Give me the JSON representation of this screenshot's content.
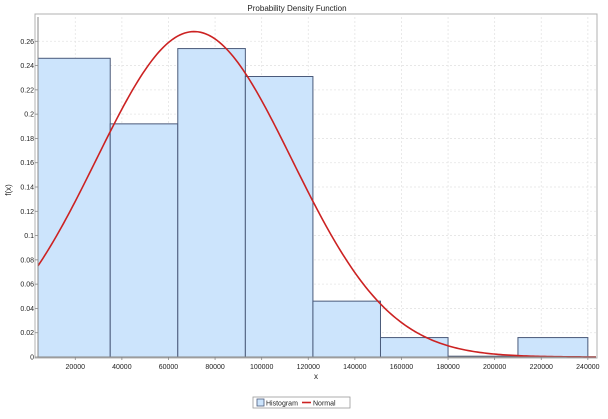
{
  "chart_data": {
    "type": "bar",
    "title": "Probability Density Function",
    "xlabel": "x",
    "ylabel": "f(x)",
    "xlim": [
      4000,
      243500
    ],
    "ylim": [
      0,
      0.28
    ],
    "grid": true,
    "legend_position": "bottom",
    "x_ticks": [
      20000,
      40000,
      60000,
      80000,
      100000,
      120000,
      140000,
      160000,
      180000,
      200000,
      220000,
      240000
    ],
    "x_tick_labels": [
      "20000",
      "40000",
      "60000",
      "80000",
      "100000",
      "120000",
      "140000",
      "160000",
      "180000",
      "200000",
      "220000",
      "240000"
    ],
    "y_ticks": [
      0,
      0.02,
      0.04,
      0.06,
      0.08,
      0.1,
      0.12,
      0.14,
      0.16,
      0.18,
      0.2,
      0.22,
      0.24,
      0.26
    ],
    "y_tick_labels": [
      "0",
      "0.02",
      "0.04",
      "0.06",
      "0.08",
      "0.1",
      "0.12",
      "0.14",
      "0.16",
      "0.18",
      "0.2",
      "0.22",
      "0.24",
      "0.26"
    ],
    "histogram": {
      "name": "Histogram",
      "color": "#cce4fc",
      "edge_color": "#4a5a7a",
      "bins": [
        {
          "x0": 4000,
          "x1": 35000,
          "value": 0.246
        },
        {
          "x0": 35000,
          "x1": 64000,
          "value": 0.192
        },
        {
          "x0": 64000,
          "x1": 93000,
          "value": 0.254
        },
        {
          "x0": 93000,
          "x1": 122000,
          "value": 0.231
        },
        {
          "x0": 122000,
          "x1": 151000,
          "value": 0.046
        },
        {
          "x0": 151000,
          "x1": 180000,
          "value": 0.016
        },
        {
          "x0": 180000,
          "x1": 210000,
          "value": 0.0
        },
        {
          "x0": 210000,
          "x1": 240000,
          "value": 0.016
        }
      ]
    },
    "normal_curve": {
      "name": "Normal",
      "color": "#cc2222",
      "mean": 71000,
      "sd": 42000,
      "peak": 0.268
    }
  }
}
